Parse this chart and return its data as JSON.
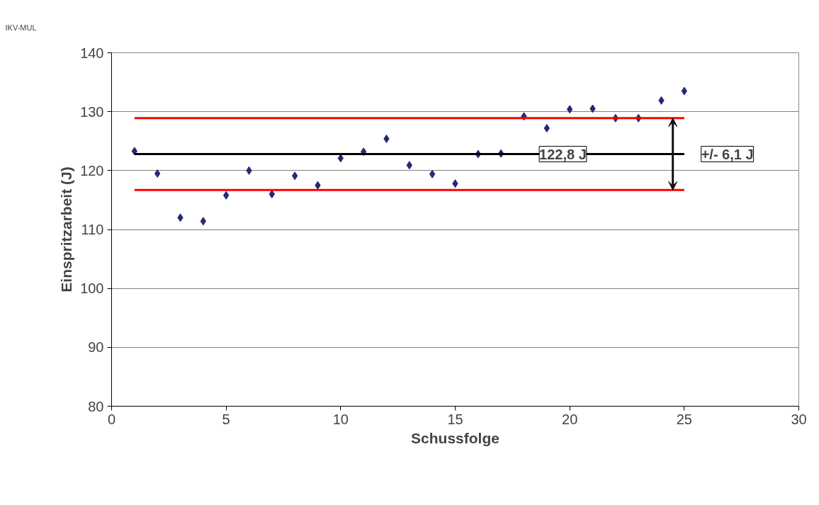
{
  "chart_data": {
    "type": "scatter",
    "xlabel": "Schussfolge",
    "ylabel": "Einspritzarbeit (J)",
    "xlim": [
      0,
      30
    ],
    "xticks": [
      0,
      5,
      10,
      15,
      20,
      25,
      30
    ],
    "ylim": [
      80,
      140
    ],
    "yticks": [
      80,
      90,
      100,
      110,
      120,
      130,
      140
    ],
    "grid": "y",
    "series": [
      {
        "marker": "diamond",
        "color": "#232a74",
        "x": [
          1,
          2,
          3,
          4,
          5,
          6,
          7,
          8,
          9,
          10,
          11,
          12,
          13,
          14,
          15,
          16,
          17,
          18,
          19,
          20,
          21,
          22,
          23,
          24,
          25
        ],
        "values": [
          123.3,
          119.5,
          112.0,
          111.4,
          115.8,
          120.0,
          116.0,
          119.1,
          117.5,
          122.1,
          123.2,
          125.4,
          120.9,
          119.4,
          117.8,
          122.8,
          122.9,
          129.2,
          127.2,
          130.4,
          130.5,
          128.9,
          128.9,
          131.9,
          133.5
        ]
      },
      {
        "type": "line",
        "marker": "none",
        "color": "#000000",
        "x": [
          1,
          25
        ],
        "values": [
          122.8,
          122.8
        ]
      },
      {
        "type": "line",
        "marker": "none",
        "color": "#ff0000",
        "x": [
          1,
          25
        ],
        "values": [
          128.9,
          128.9
        ]
      },
      {
        "type": "line",
        "marker": "none",
        "color": "#ff0000",
        "x": [
          1,
          25
        ],
        "values": [
          116.7,
          116.7
        ]
      }
    ],
    "annotations": [
      "IKV-MUL",
      {
        "text": "122,8 J",
        "x": 19.7,
        "y": 122.8
      },
      {
        "text": "+/- 6,1 J",
        "x": 24.5,
        "y": 122.8
      }
    ]
  }
}
